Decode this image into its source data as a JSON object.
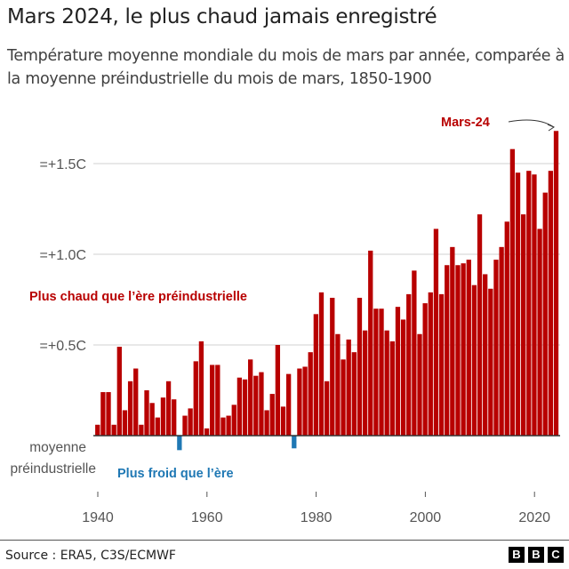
{
  "title": "Mars 2024, le plus chaud jamais enregistré",
  "subtitle": "Température moyenne mondiale du mois de mars par année, comparée à la moyenne préindustrielle du mois de mars, 1850-1900",
  "source": "Source : ERA5, C3S/ECMWF",
  "logo": [
    "B",
    "B",
    "C"
  ],
  "chart_data": {
    "type": "bar",
    "title": "Mars 2024, le plus chaud jamais enregistré",
    "ylabel": "",
    "xlabel": "",
    "ylim": [
      -0.1,
      1.75
    ],
    "xlim": [
      1940,
      2024
    ],
    "grid": true,
    "y_ticks": [
      {
        "value": 0.5,
        "label": "=+0.5C"
      },
      {
        "value": 1.0,
        "label": "=+1.0C"
      },
      {
        "value": 1.5,
        "label": "=+1.5C"
      }
    ],
    "baseline_label": [
      "moyenne",
      "préindustrielle"
    ],
    "x_ticks": [
      1940,
      1960,
      1980,
      2000,
      2020
    ],
    "annotations": {
      "warmer": "Plus chaud que l’ère préindustrielle",
      "colder": "Plus froid que l’ère",
      "highlight": "Mars-24"
    },
    "colors": {
      "positive": "#b80000",
      "negative": "#1f78b4"
    },
    "x": [
      1940,
      1941,
      1942,
      1943,
      1944,
      1945,
      1946,
      1947,
      1948,
      1949,
      1950,
      1951,
      1952,
      1953,
      1954,
      1955,
      1956,
      1957,
      1958,
      1959,
      1960,
      1961,
      1962,
      1963,
      1964,
      1965,
      1966,
      1967,
      1968,
      1969,
      1970,
      1971,
      1972,
      1973,
      1974,
      1975,
      1976,
      1977,
      1978,
      1979,
      1980,
      1981,
      1982,
      1983,
      1984,
      1985,
      1986,
      1987,
      1988,
      1989,
      1990,
      1991,
      1992,
      1993,
      1994,
      1995,
      1996,
      1997,
      1998,
      1999,
      2000,
      2001,
      2002,
      2003,
      2004,
      2005,
      2006,
      2007,
      2008,
      2009,
      2010,
      2011,
      2012,
      2013,
      2014,
      2015,
      2016,
      2017,
      2018,
      2019,
      2020,
      2021,
      2022,
      2023,
      2024
    ],
    "values": [
      0.06,
      0.24,
      0.24,
      0.06,
      0.49,
      0.14,
      0.3,
      0.37,
      0.06,
      0.25,
      0.18,
      0.1,
      0.21,
      0.3,
      0.2,
      -0.08,
      0.11,
      0.15,
      0.41,
      0.52,
      0.04,
      0.39,
      0.39,
      0.1,
      0.11,
      0.17,
      0.32,
      0.31,
      0.42,
      0.33,
      0.35,
      0.14,
      0.23,
      0.5,
      0.16,
      0.34,
      -0.07,
      0.37,
      0.38,
      0.46,
      0.67,
      0.79,
      0.3,
      0.76,
      0.56,
      0.42,
      0.53,
      0.46,
      0.76,
      0.58,
      1.02,
      0.7,
      0.7,
      0.58,
      0.52,
      0.71,
      0.64,
      0.78,
      0.91,
      0.56,
      0.73,
      0.79,
      1.14,
      0.78,
      0.94,
      1.04,
      0.94,
      0.95,
      0.97,
      0.83,
      1.22,
      0.89,
      0.81,
      0.97,
      1.04,
      1.18,
      1.58,
      1.45,
      1.22,
      1.46,
      1.44,
      1.14,
      1.34,
      1.46,
      1.68
    ]
  }
}
